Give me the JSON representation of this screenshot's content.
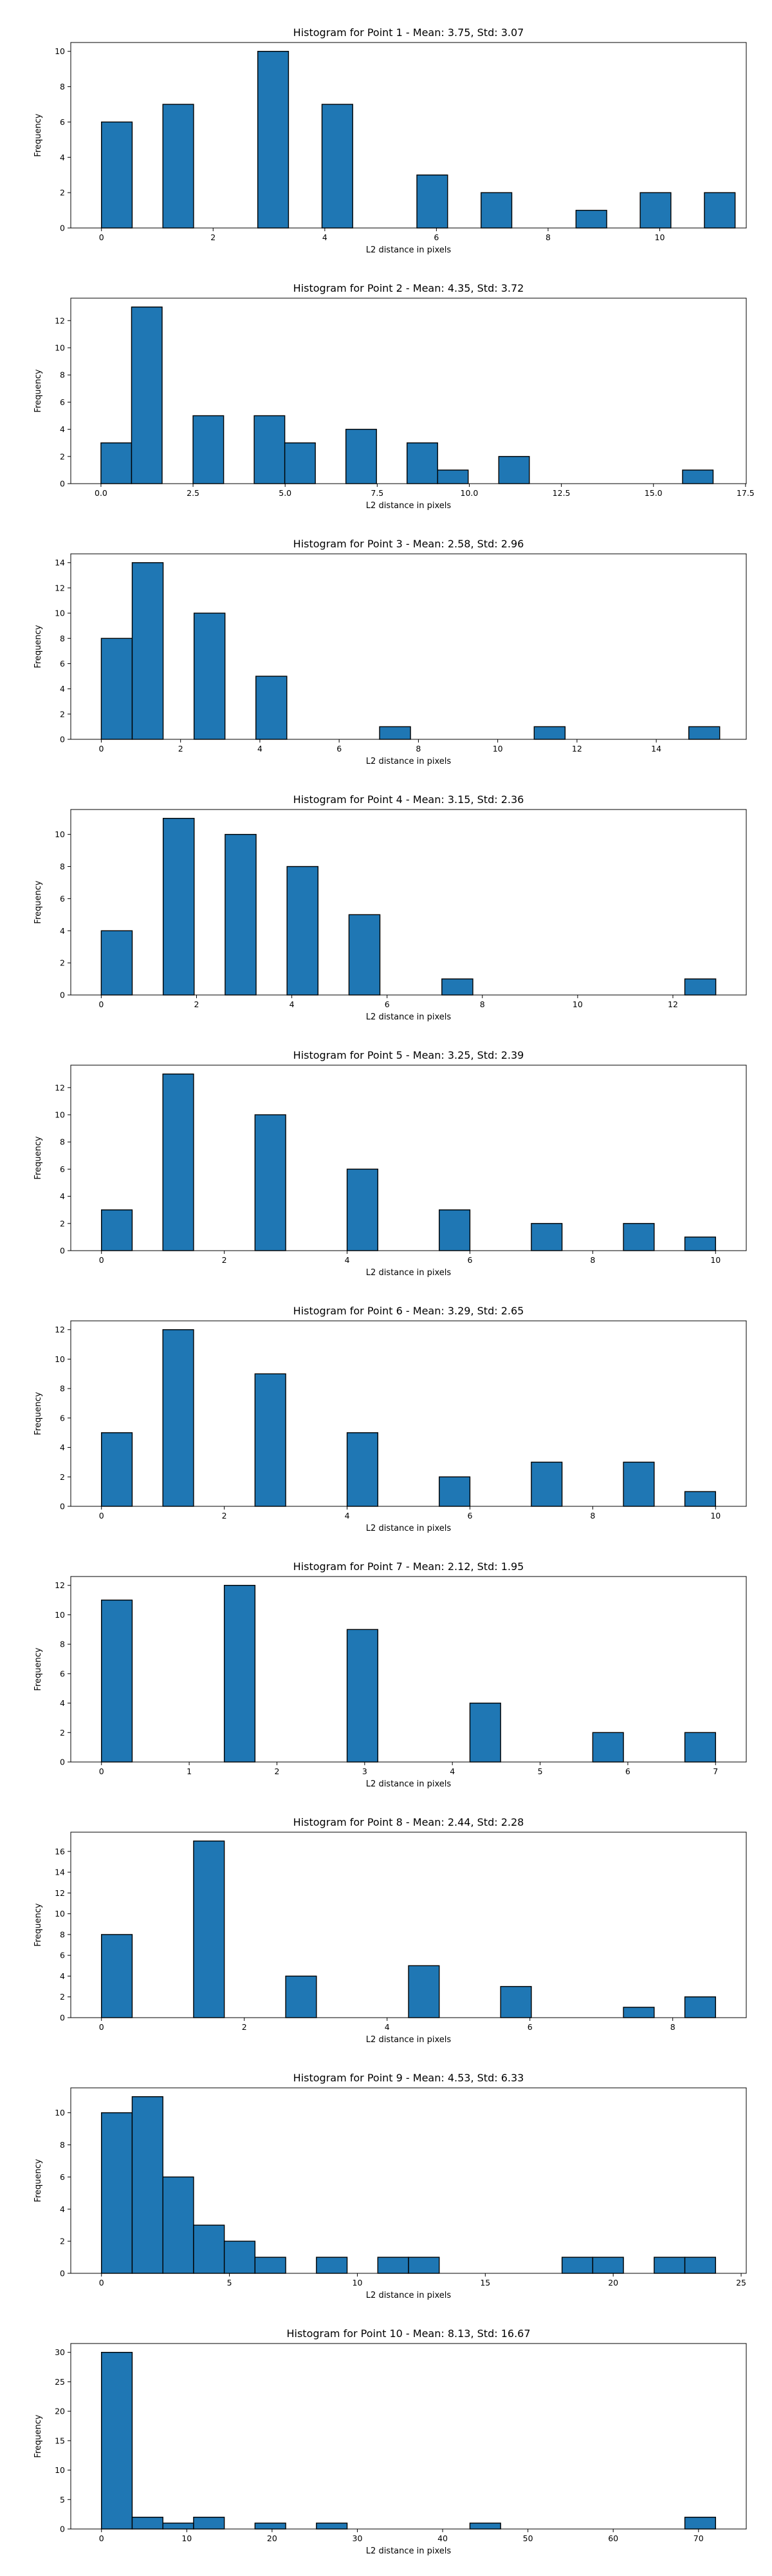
{
  "bar_color": "#1f77b4",
  "edge_color": "#000000",
  "chart_data": [
    {
      "type": "bar",
      "title": "Histogram for Point 1 - Mean: 3.75, Std: 3.07",
      "xlabel": "L2 distance in pixels",
      "ylabel": "Frequency",
      "xlim": [
        -0.55,
        11.55
      ],
      "ylim": [
        0,
        10.5
      ],
      "xticks": [
        0,
        2,
        4,
        6,
        8,
        10
      ],
      "yticks": [
        0,
        2,
        4,
        6,
        8,
        10
      ],
      "bins": [
        {
          "x0": 0.0,
          "x1": 0.55,
          "value": 6
        },
        {
          "x0": 1.1,
          "x1": 1.65,
          "value": 7
        },
        {
          "x0": 2.8,
          "x1": 3.35,
          "value": 10
        },
        {
          "x0": 3.95,
          "x1": 4.5,
          "value": 7
        },
        {
          "x0": 5.65,
          "x1": 6.2,
          "value": 3
        },
        {
          "x0": 6.8,
          "x1": 7.35,
          "value": 2
        },
        {
          "x0": 8.5,
          "x1": 9.05,
          "value": 1
        },
        {
          "x0": 9.65,
          "x1": 10.2,
          "value": 2
        },
        {
          "x0": 10.8,
          "x1": 11.35,
          "value": 2
        }
      ]
    },
    {
      "type": "bar",
      "title": "Histogram for Point 2 - Mean: 4.35, Std: 3.72",
      "xlabel": "L2 distance in pixels",
      "ylabel": "Frequency",
      "xlim": [
        -0.82,
        17.52
      ],
      "ylim": [
        0,
        13.65
      ],
      "xticks": [
        0.0,
        2.5,
        5.0,
        7.5,
        10.0,
        12.5,
        15.0,
        17.5
      ],
      "xticklabels": [
        "0.0",
        "2.5",
        "5.0",
        "7.5",
        "10.0",
        "12.5",
        "15.0",
        "17.5"
      ],
      "yticks": [
        0,
        2,
        4,
        6,
        8,
        10,
        12
      ],
      "bins": [
        {
          "x0": 0.0,
          "x1": 0.83,
          "value": 3
        },
        {
          "x0": 0.83,
          "x1": 1.66,
          "value": 13
        },
        {
          "x0": 2.5,
          "x1": 3.33,
          "value": 5
        },
        {
          "x0": 4.16,
          "x1": 4.99,
          "value": 5
        },
        {
          "x0": 4.99,
          "x1": 5.82,
          "value": 3
        },
        {
          "x0": 6.65,
          "x1": 7.48,
          "value": 4
        },
        {
          "x0": 8.31,
          "x1": 9.14,
          "value": 3
        },
        {
          "x0": 9.14,
          "x1": 9.97,
          "value": 1
        },
        {
          "x0": 10.8,
          "x1": 11.63,
          "value": 2
        },
        {
          "x0": 15.79,
          "x1": 16.62,
          "value": 1
        }
      ]
    },
    {
      "type": "bar",
      "title": "Histogram for Point 3 - Mean: 2.58, Std: 2.96",
      "xlabel": "L2 distance in pixels",
      "ylabel": "Frequency",
      "xlim": [
        -0.77,
        16.27
      ],
      "ylim": [
        0,
        14.7
      ],
      "xticks": [
        0,
        2,
        4,
        6,
        8,
        10,
        12,
        14
      ],
      "yticks": [
        0,
        2,
        4,
        6,
        8,
        10,
        12,
        14
      ],
      "bins": [
        {
          "x0": 0.0,
          "x1": 0.78,
          "value": 8
        },
        {
          "x0": 0.78,
          "x1": 1.56,
          "value": 14
        },
        {
          "x0": 2.34,
          "x1": 3.12,
          "value": 10
        },
        {
          "x0": 3.9,
          "x1": 4.68,
          "value": 5
        },
        {
          "x0": 7.02,
          "x1": 7.8,
          "value": 1
        },
        {
          "x0": 10.92,
          "x1": 11.7,
          "value": 1
        },
        {
          "x0": 14.82,
          "x1": 15.6,
          "value": 1
        }
      ]
    },
    {
      "type": "bar",
      "title": "Histogram for Point 4 - Mean: 3.15, Std: 2.36",
      "xlabel": "L2 distance in pixels",
      "ylabel": "Frequency",
      "xlim": [
        -0.64,
        13.54
      ],
      "ylim": [
        0,
        11.55
      ],
      "xticks": [
        0,
        2,
        4,
        6,
        8,
        10,
        12
      ],
      "yticks": [
        0,
        2,
        4,
        6,
        8,
        10
      ],
      "bins": [
        {
          "x0": 0.0,
          "x1": 0.65,
          "value": 4
        },
        {
          "x0": 1.3,
          "x1": 1.95,
          "value": 11
        },
        {
          "x0": 2.6,
          "x1": 3.25,
          "value": 10
        },
        {
          "x0": 3.9,
          "x1": 4.55,
          "value": 8
        },
        {
          "x0": 5.2,
          "x1": 5.85,
          "value": 5
        },
        {
          "x0": 7.15,
          "x1": 7.8,
          "value": 1
        },
        {
          "x0": 12.25,
          "x1": 12.9,
          "value": 1
        }
      ]
    },
    {
      "type": "bar",
      "title": "Histogram for Point 5 - Mean: 3.25, Std: 2.39",
      "xlabel": "L2 distance in pixels",
      "ylabel": "Frequency",
      "xlim": [
        -0.5,
        10.5
      ],
      "ylim": [
        0,
        13.65
      ],
      "xticks": [
        0,
        2,
        4,
        6,
        8,
        10
      ],
      "yticks": [
        0,
        2,
        4,
        6,
        8,
        10,
        12
      ],
      "bins": [
        {
          "x0": 0.0,
          "x1": 0.5,
          "value": 3
        },
        {
          "x0": 1.0,
          "x1": 1.5,
          "value": 13
        },
        {
          "x0": 2.5,
          "x1": 3.0,
          "value": 10
        },
        {
          "x0": 4.0,
          "x1": 4.5,
          "value": 6
        },
        {
          "x0": 5.5,
          "x1": 6.0,
          "value": 3
        },
        {
          "x0": 7.0,
          "x1": 7.5,
          "value": 2
        },
        {
          "x0": 8.5,
          "x1": 9.0,
          "value": 2
        },
        {
          "x0": 9.5,
          "x1": 10.0,
          "value": 1
        }
      ]
    },
    {
      "type": "bar",
      "title": "Histogram for Point 6 - Mean: 3.29, Std: 2.65",
      "xlabel": "L2 distance in pixels",
      "ylabel": "Frequency",
      "xlim": [
        -0.5,
        10.5
      ],
      "ylim": [
        0,
        12.6
      ],
      "xticks": [
        0,
        2,
        4,
        6,
        8,
        10
      ],
      "yticks": [
        0,
        2,
        4,
        6,
        8,
        10,
        12
      ],
      "bins": [
        {
          "x0": 0.0,
          "x1": 0.5,
          "value": 5
        },
        {
          "x0": 1.0,
          "x1": 1.5,
          "value": 12
        },
        {
          "x0": 2.5,
          "x1": 3.0,
          "value": 9
        },
        {
          "x0": 4.0,
          "x1": 4.5,
          "value": 5
        },
        {
          "x0": 5.5,
          "x1": 6.0,
          "value": 2
        },
        {
          "x0": 7.0,
          "x1": 7.5,
          "value": 3
        },
        {
          "x0": 8.5,
          "x1": 9.0,
          "value": 3
        },
        {
          "x0": 9.5,
          "x1": 10.0,
          "value": 1
        }
      ]
    },
    {
      "type": "bar",
      "title": "Histogram for Point 7 - Mean: 2.12, Std: 1.95",
      "xlabel": "L2 distance in pixels",
      "ylabel": "Frequency",
      "xlim": [
        -0.35,
        7.35
      ],
      "ylim": [
        0,
        12.6
      ],
      "xticks": [
        0,
        1,
        2,
        3,
        4,
        5,
        6,
        7
      ],
      "yticks": [
        0,
        2,
        4,
        6,
        8,
        10,
        12
      ],
      "bins": [
        {
          "x0": 0.0,
          "x1": 0.35,
          "value": 11
        },
        {
          "x0": 1.4,
          "x1": 1.75,
          "value": 12
        },
        {
          "x0": 2.8,
          "x1": 3.15,
          "value": 9
        },
        {
          "x0": 4.2,
          "x1": 4.55,
          "value": 4
        },
        {
          "x0": 5.6,
          "x1": 5.95,
          "value": 2
        },
        {
          "x0": 6.65,
          "x1": 7.0,
          "value": 2
        }
      ]
    },
    {
      "type": "bar",
      "title": "Histogram for Point 8 - Mean: 2.44, Std: 2.28",
      "xlabel": "L2 distance in pixels",
      "ylabel": "Frequency",
      "xlim": [
        -0.43,
        9.03
      ],
      "ylim": [
        0,
        17.85
      ],
      "xticks": [
        0,
        2,
        4,
        6,
        8
      ],
      "yticks": [
        0,
        2,
        4,
        6,
        8,
        10,
        12,
        14,
        16
      ],
      "bins": [
        {
          "x0": 0.0,
          "x1": 0.43,
          "value": 8
        },
        {
          "x0": 1.29,
          "x1": 1.72,
          "value": 17
        },
        {
          "x0": 2.58,
          "x1": 3.01,
          "value": 4
        },
        {
          "x0": 4.3,
          "x1": 4.73,
          "value": 5
        },
        {
          "x0": 5.59,
          "x1": 6.02,
          "value": 3
        },
        {
          "x0": 7.31,
          "x1": 7.74,
          "value": 1
        },
        {
          "x0": 8.17,
          "x1": 8.6,
          "value": 2
        }
      ]
    },
    {
      "type": "bar",
      "title": "Histogram for Point 9 - Mean: 4.53, Std: 6.33",
      "xlabel": "L2 distance in pixels",
      "ylabel": "Frequency",
      "xlim": [
        -1.2,
        25.2
      ],
      "ylim": [
        0,
        11.55
      ],
      "xticks": [
        0,
        5,
        10,
        15,
        20,
        25
      ],
      "yticks": [
        0,
        2,
        4,
        6,
        8,
        10
      ],
      "bins": [
        {
          "x0": 0.0,
          "x1": 1.2,
          "value": 10
        },
        {
          "x0": 1.2,
          "x1": 2.4,
          "value": 11
        },
        {
          "x0": 2.4,
          "x1": 3.6,
          "value": 6
        },
        {
          "x0": 3.6,
          "x1": 4.8,
          "value": 3
        },
        {
          "x0": 4.8,
          "x1": 6.0,
          "value": 2
        },
        {
          "x0": 6.0,
          "x1": 7.2,
          "value": 1
        },
        {
          "x0": 8.4,
          "x1": 9.6,
          "value": 1
        },
        {
          "x0": 10.8,
          "x1": 12.0,
          "value": 1
        },
        {
          "x0": 12.0,
          "x1": 13.2,
          "value": 1
        },
        {
          "x0": 18.0,
          "x1": 19.2,
          "value": 1
        },
        {
          "x0": 19.2,
          "x1": 20.4,
          "value": 1
        },
        {
          "x0": 21.6,
          "x1": 22.8,
          "value": 1
        },
        {
          "x0": 22.8,
          "x1": 24.0,
          "value": 1
        }
      ]
    },
    {
      "type": "bar",
      "title": "Histogram for Point 10 - Mean: 8.13, Std: 16.67",
      "xlabel": "L2 distance in pixels",
      "ylabel": "Frequency",
      "xlim": [
        -3.6,
        75.6
      ],
      "ylim": [
        0,
        31.5
      ],
      "xticks": [
        0,
        10,
        20,
        30,
        40,
        50,
        60,
        70
      ],
      "yticks": [
        0,
        5,
        10,
        15,
        20,
        25,
        30
      ],
      "bins": [
        {
          "x0": 0.0,
          "x1": 3.6,
          "value": 30
        },
        {
          "x0": 3.6,
          "x1": 7.2,
          "value": 2
        },
        {
          "x0": 7.2,
          "x1": 10.8,
          "value": 1
        },
        {
          "x0": 10.8,
          "x1": 14.4,
          "value": 2
        },
        {
          "x0": 18.0,
          "x1": 21.6,
          "value": 1
        },
        {
          "x0": 25.2,
          "x1": 28.8,
          "value": 1
        },
        {
          "x0": 43.2,
          "x1": 46.8,
          "value": 1
        },
        {
          "x0": 68.4,
          "x1": 72.0,
          "value": 2
        }
      ]
    }
  ]
}
